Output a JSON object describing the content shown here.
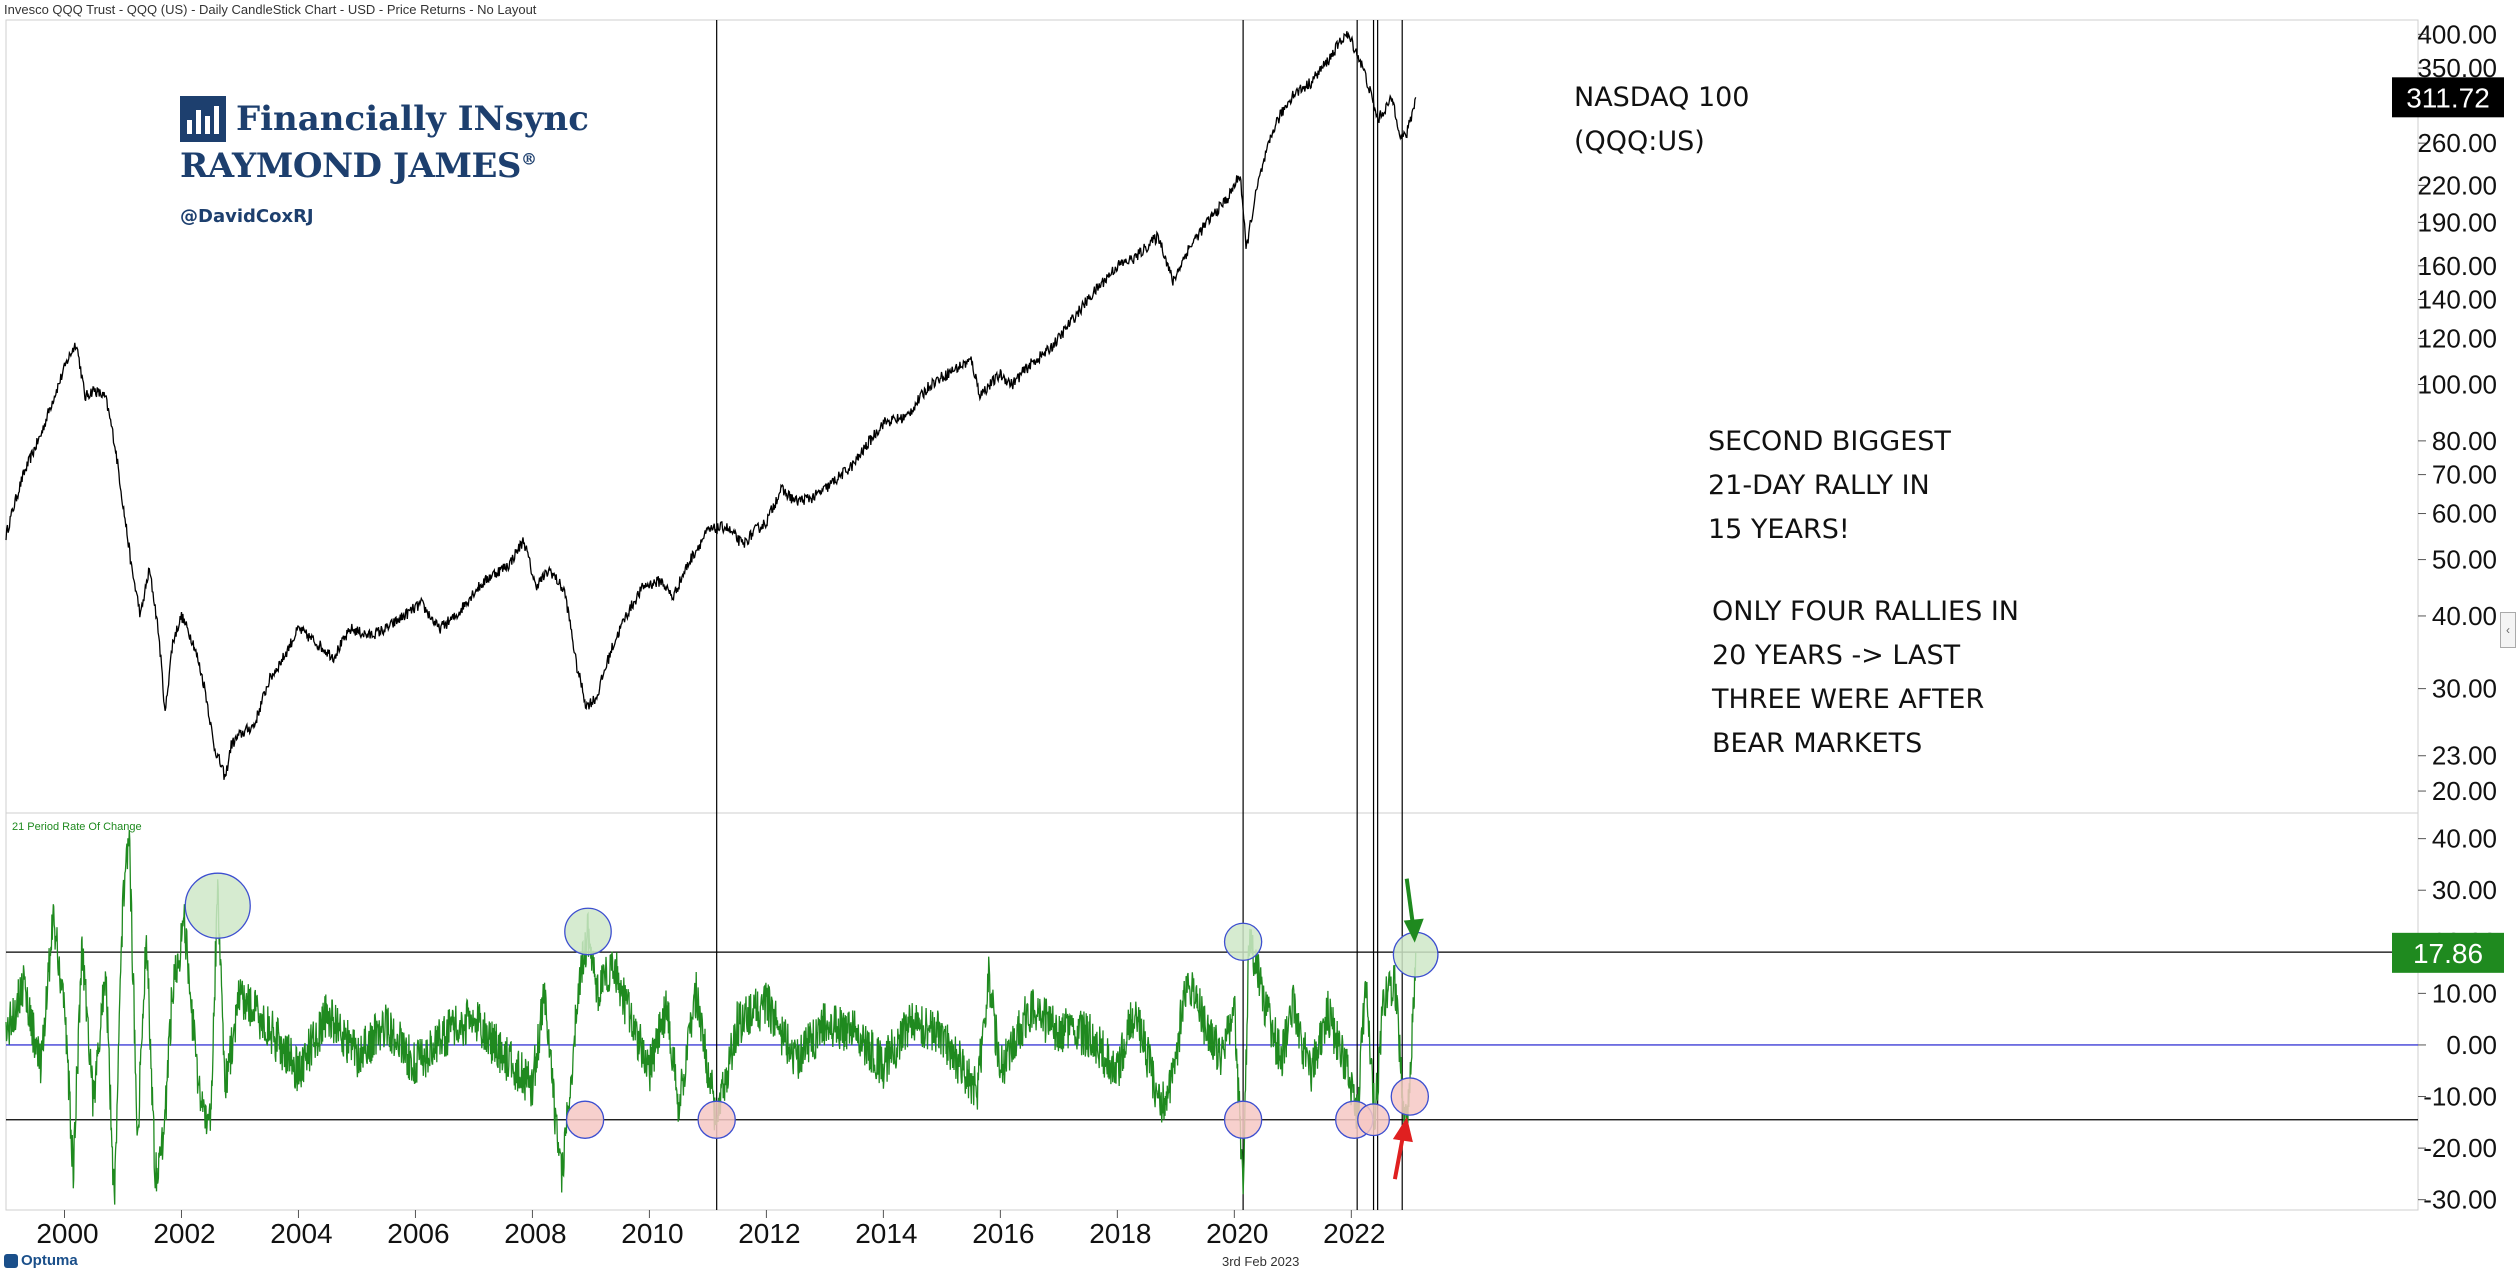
{
  "header": {
    "chart_title": "Invesco QQQ Trust - QQQ (US) - Daily CandleStick Chart - USD - Price Returns - No Layout"
  },
  "logo": {
    "line1": "Financially INsync",
    "line2": "RAYMOND JAMES",
    "registered": "®",
    "handle": "@DavidCoxRJ"
  },
  "annotations": {
    "title": [
      "NASDAQ 100",
      "(QQQ:US)"
    ],
    "rally_note": [
      "SECOND BIGGEST",
      "21-DAY RALLY IN",
      "15 YEARS!"
    ],
    "rallies_note": [
      "ONLY FOUR RALLIES IN",
      "20 YEARS -> LAST",
      "THREE WERE AFTER",
      "BEAR MARKETS"
    ]
  },
  "footer": {
    "date": "3rd Feb 2023",
    "brand": "Optuma"
  },
  "colors": {
    "price_line": "#000000",
    "roc_line": "#1f8a1f",
    "zero_line": "#3d3dd6",
    "threshold_lines": "#000000",
    "green_circle_fill": "#cfe8c8",
    "red_circle_fill": "#f6c8c4",
    "circle_stroke": "#3d4fd0",
    "price_badge": "#000000",
    "roc_badge": "#1f8a1f",
    "arrow_green": "#1f8a1f",
    "arrow_red": "#e02020"
  },
  "chart_data": [
    {
      "type": "line",
      "title": "",
      "series": [
        {
          "name": "",
          "points": [
            [
              1999.0,
              55
            ],
            [
              1999.3,
              70
            ],
            [
              1999.6,
              82
            ],
            [
              1999.9,
              100
            ],
            [
              2000.05,
              110
            ],
            [
              2000.2,
              118
            ],
            [
              2000.35,
              95
            ],
            [
              2000.5,
              98
            ],
            [
              2000.7,
              95
            ],
            [
              2000.85,
              80
            ],
            [
              2001.0,
              62
            ],
            [
              2001.15,
              48
            ],
            [
              2001.3,
              40
            ],
            [
              2001.45,
              48
            ],
            [
              2001.6,
              38
            ],
            [
              2001.72,
              27
            ],
            [
              2001.85,
              36
            ],
            [
              2002.0,
              40
            ],
            [
              2002.2,
              36
            ],
            [
              2002.4,
              30
            ],
            [
              2002.55,
              24
            ],
            [
              2002.75,
              21
            ],
            [
              2002.85,
              24
            ],
            [
              2003.0,
              25
            ],
            [
              2003.25,
              26
            ],
            [
              2003.5,
              31
            ],
            [
              2003.75,
              34
            ],
            [
              2004.0,
              38
            ],
            [
              2004.3,
              36
            ],
            [
              2004.6,
              34
            ],
            [
              2004.9,
              38
            ],
            [
              2005.2,
              37
            ],
            [
              2005.5,
              38
            ],
            [
              2005.8,
              40
            ],
            [
              2006.1,
              42
            ],
            [
              2006.4,
              38
            ],
            [
              2006.7,
              40
            ],
            [
              2007.0,
              44
            ],
            [
              2007.3,
              47
            ],
            [
              2007.6,
              49
            ],
            [
              2007.85,
              54
            ],
            [
              2008.05,
              45
            ],
            [
              2008.3,
              48
            ],
            [
              2008.55,
              44
            ],
            [
              2008.75,
              33
            ],
            [
              2008.92,
              28
            ],
            [
              2009.1,
              29
            ],
            [
              2009.35,
              35
            ],
            [
              2009.6,
              40
            ],
            [
              2009.9,
              45
            ],
            [
              2010.2,
              46
            ],
            [
              2010.4,
              43
            ],
            [
              2010.7,
              50
            ],
            [
              2011.0,
              56
            ],
            [
              2011.3,
              57
            ],
            [
              2011.6,
              53
            ],
            [
              2011.8,
              56
            ],
            [
              2012.0,
              58
            ],
            [
              2012.25,
              66
            ],
            [
              2012.5,
              63
            ],
            [
              2012.8,
              64
            ],
            [
              2013.0,
              66
            ],
            [
              2013.5,
              73
            ],
            [
              2014.0,
              86
            ],
            [
              2014.4,
              88
            ],
            [
              2014.8,
              100
            ],
            [
              2015.2,
              106
            ],
            [
              2015.5,
              110
            ],
            [
              2015.65,
              96
            ],
            [
              2016.0,
              104
            ],
            [
              2016.2,
              100
            ],
            [
              2016.5,
              108
            ],
            [
              2016.8,
              114
            ],
            [
              2017.0,
              120
            ],
            [
              2017.5,
              140
            ],
            [
              2018.0,
              160
            ],
            [
              2018.3,
              165
            ],
            [
              2018.7,
              180
            ],
            [
              2018.95,
              150
            ],
            [
              2019.2,
              170
            ],
            [
              2019.5,
              188
            ],
            [
              2019.9,
              210
            ],
            [
              2020.1,
              230
            ],
            [
              2020.2,
              170
            ],
            [
              2020.4,
              220
            ],
            [
              2020.7,
              280
            ],
            [
              2021.0,
              315
            ],
            [
              2021.3,
              330
            ],
            [
              2021.6,
              360
            ],
            [
              2021.9,
              400
            ],
            [
              2022.0,
              390
            ],
            [
              2022.2,
              350
            ],
            [
              2022.45,
              285
            ],
            [
              2022.7,
              310
            ],
            [
              2022.85,
              265
            ],
            [
              2022.95,
              270
            ],
            [
              2023.05,
              295
            ],
            [
              2023.1,
              311.72
            ]
          ]
        }
      ],
      "last_value": "311.72",
      "y_scale": "log",
      "ylim": [
        19,
        420
      ],
      "y_ticks": [
        {
          "v": 400,
          "label": "400.00"
        },
        {
          "v": 350,
          "label": "350.00"
        },
        {
          "v": 300,
          "label": "300.00"
        },
        {
          "v": 260,
          "label": "260.00"
        },
        {
          "v": 220,
          "label": "220.00"
        },
        {
          "v": 190,
          "label": "190.00"
        },
        {
          "v": 160,
          "label": "160.00"
        },
        {
          "v": 140,
          "label": "140.00"
        },
        {
          "v": 120,
          "label": "120.00"
        },
        {
          "v": 100,
          "label": "100.00"
        },
        {
          "v": 80,
          "label": "80.00"
        },
        {
          "v": 70,
          "label": "70.00"
        },
        {
          "v": 60,
          "label": "60.00"
        },
        {
          "v": 50,
          "label": "50.00"
        },
        {
          "v": 40,
          "label": "40.00"
        },
        {
          "v": 30,
          "label": "30.00"
        },
        {
          "v": 23,
          "label": "23.00"
        },
        {
          "v": 20,
          "label": "20.00"
        }
      ],
      "xlim": [
        1999.0,
        2024.2
      ],
      "x_ticks": [
        "2000",
        "2002",
        "2004",
        "2006",
        "2008",
        "2010",
        "2012",
        "2014",
        "2016",
        "2018",
        "2020",
        "2022"
      ],
      "vertical_markers": [
        2011.15,
        2020.15,
        2022.1,
        2022.38,
        2022.45,
        2022.87
      ]
    },
    {
      "type": "line",
      "title": "21 Period Rate Of Change",
      "series": [
        {
          "name": "21 Period Rate Of Change",
          "points": [
            [
              1999.0,
              2
            ],
            [
              1999.3,
              12
            ],
            [
              1999.6,
              -5
            ],
            [
              1999.8,
              25
            ],
            [
              2000.0,
              8
            ],
            [
              2000.15,
              -25
            ],
            [
              2000.3,
              20
            ],
            [
              2000.5,
              -12
            ],
            [
              2000.7,
              15
            ],
            [
              2000.85,
              -30
            ],
            [
              2001.0,
              28
            ],
            [
              2001.1,
              42
            ],
            [
              2001.25,
              -18
            ],
            [
              2001.4,
              22
            ],
            [
              2001.55,
              -25
            ],
            [
              2001.7,
              -18
            ],
            [
              2001.85,
              12
            ],
            [
              2002.05,
              23
            ],
            [
              2002.3,
              -10
            ],
            [
              2002.5,
              -15
            ],
            [
              2002.62,
              31
            ],
            [
              2002.75,
              -8
            ],
            [
              2003.0,
              10
            ],
            [
              2003.5,
              3
            ],
            [
              2004.0,
              -5
            ],
            [
              2004.5,
              6
            ],
            [
              2005.0,
              -2
            ],
            [
              2005.5,
              4
            ],
            [
              2006.0,
              -4
            ],
            [
              2006.5,
              2
            ],
            [
              2007.0,
              5
            ],
            [
              2007.5,
              -2
            ],
            [
              2008.0,
              -8
            ],
            [
              2008.2,
              10
            ],
            [
              2008.4,
              -15
            ],
            [
              2008.5,
              -26
            ],
            [
              2008.8,
              12
            ],
            [
              2008.95,
              22
            ],
            [
              2009.1,
              10
            ],
            [
              2009.4,
              15
            ],
            [
              2009.7,
              4
            ],
            [
              2010.0,
              -5
            ],
            [
              2010.3,
              8
            ],
            [
              2010.5,
              -12
            ],
            [
              2010.8,
              10
            ],
            [
              2011.15,
              -15
            ],
            [
              2011.5,
              4
            ],
            [
              2012.0,
              8
            ],
            [
              2012.5,
              -3
            ],
            [
              2013.0,
              4
            ],
            [
              2013.5,
              3
            ],
            [
              2014.0,
              -4
            ],
            [
              2014.5,
              5
            ],
            [
              2015.0,
              2
            ],
            [
              2015.6,
              -9
            ],
            [
              2015.8,
              13
            ],
            [
              2016.0,
              -5
            ],
            [
              2016.5,
              7
            ],
            [
              2017.0,
              3
            ],
            [
              2017.5,
              2
            ],
            [
              2018.0,
              -5
            ],
            [
              2018.3,
              7
            ],
            [
              2018.75,
              -12
            ],
            [
              2018.95,
              -6
            ],
            [
              2019.2,
              14
            ],
            [
              2019.5,
              4
            ],
            [
              2019.8,
              -3
            ],
            [
              2020.0,
              8
            ],
            [
              2020.15,
              -28
            ],
            [
              2020.25,
              21
            ],
            [
              2020.5,
              9
            ],
            [
              2020.8,
              -3
            ],
            [
              2021.0,
              8
            ],
            [
              2021.3,
              -6
            ],
            [
              2021.6,
              6
            ],
            [
              2021.9,
              -4
            ],
            [
              2022.1,
              -14
            ],
            [
              2022.25,
              12
            ],
            [
              2022.4,
              -14
            ],
            [
              2022.55,
              8
            ],
            [
              2022.75,
              12
            ],
            [
              2022.9,
              -15
            ],
            [
              2023.0,
              -10
            ],
            [
              2023.1,
              17.86
            ]
          ]
        }
      ],
      "last_value": "17.86",
      "ylim": [
        -32,
        44
      ],
      "zero_line": 0,
      "threshold_lines": [
        18,
        -14.5
      ],
      "y_ticks": [
        {
          "v": 40,
          "label": "40.00"
        },
        {
          "v": 30,
          "label": "30.00"
        },
        {
          "v": 20,
          "label": "20.00"
        },
        {
          "v": 10,
          "label": "10.00"
        },
        {
          "v": 0,
          "label": "0.00"
        },
        {
          "v": -10,
          "label": "-10.00"
        },
        {
          "v": -20,
          "label": "-20.00"
        },
        {
          "v": -30,
          "label": "-30.00"
        }
      ],
      "highlight_circles": [
        {
          "x": 2002.62,
          "y": 27,
          "r": 3.5,
          "kind": "green"
        },
        {
          "x": 2008.95,
          "y": 22,
          "r": 2.5,
          "kind": "green"
        },
        {
          "x": 2020.15,
          "y": 20,
          "r": 2,
          "kind": "green"
        },
        {
          "x": 2023.1,
          "y": 17.5,
          "r": 2.4,
          "kind": "green"
        },
        {
          "x": 2008.9,
          "y": -14.5,
          "r": 2,
          "kind": "red"
        },
        {
          "x": 2011.15,
          "y": -14.5,
          "r": 2,
          "kind": "red"
        },
        {
          "x": 2020.15,
          "y": -14.5,
          "r": 2,
          "kind": "red"
        },
        {
          "x": 2022.05,
          "y": -14.5,
          "r": 2,
          "kind": "red"
        },
        {
          "x": 2022.38,
          "y": -14.5,
          "r": 1.7,
          "kind": "red"
        },
        {
          "x": 2023.0,
          "y": -10,
          "r": 2,
          "kind": "red"
        }
      ]
    }
  ]
}
